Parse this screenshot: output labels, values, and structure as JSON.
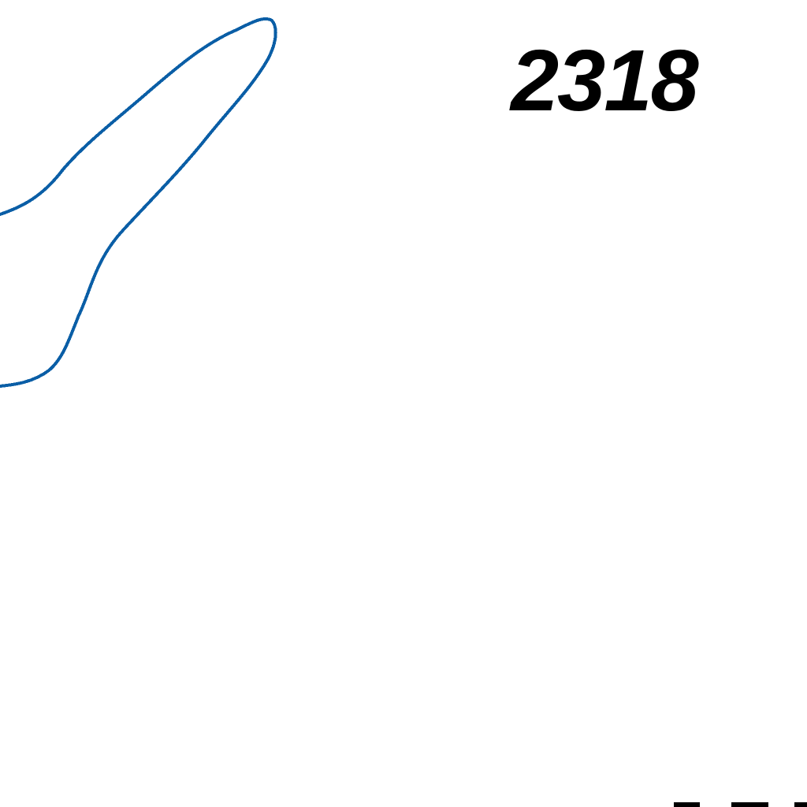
{
  "map": {
    "label": "2318",
    "outline_color": "#0a5ea6",
    "text_color": "#000000",
    "background": "#ffffff"
  }
}
